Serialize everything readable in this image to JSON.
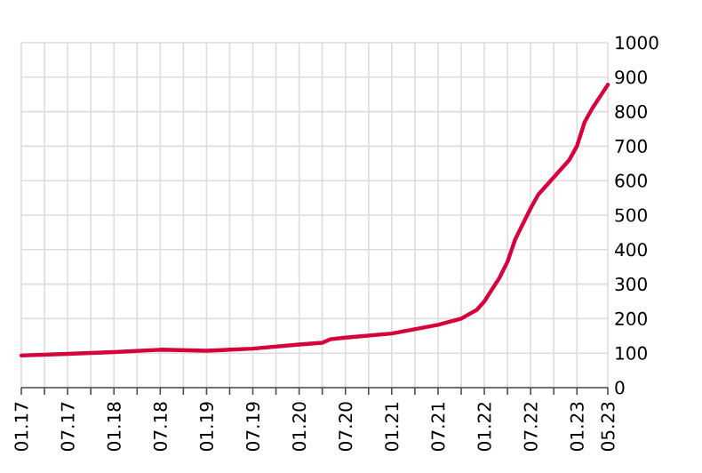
{
  "chart_data": {
    "type": "line",
    "x": [
      "2017-01",
      "2017-07",
      "2018-01",
      "2018-07",
      "2019-01",
      "2019-07",
      "2020-01",
      "2020-04",
      "2020-05",
      "2020-07",
      "2021-01",
      "2021-07",
      "2021-10",
      "2021-12",
      "2022-01",
      "2022-03",
      "2022-04",
      "2022-05",
      "2022-07",
      "2022-08",
      "2022-10",
      "2022-12",
      "2023-01",
      "2023-02",
      "2023-03",
      "2023-05"
    ],
    "series": [
      {
        "color": "#d5003c",
        "values": [
          93,
          98,
          103,
          110,
          107,
          113,
          125,
          130,
          140,
          145,
          157,
          182,
          200,
          225,
          250,
          320,
          365,
          430,
          520,
          560,
          610,
          660,
          700,
          770,
          810,
          878
        ]
      }
    ],
    "xlim": [
      "2017-01",
      "2023-05"
    ],
    "xticks": [
      {
        "value": "2017-01",
        "label": "01.17"
      },
      {
        "value": "2017-04",
        "label": null
      },
      {
        "value": "2017-07",
        "label": "07.17"
      },
      {
        "value": "2017-10",
        "label": null
      },
      {
        "value": "2018-01",
        "label": "01.18"
      },
      {
        "value": "2018-04",
        "label": null
      },
      {
        "value": "2018-07",
        "label": "07.18"
      },
      {
        "value": "2018-10",
        "label": null
      },
      {
        "value": "2019-01",
        "label": "01.19"
      },
      {
        "value": "2019-04",
        "label": null
      },
      {
        "value": "2019-07",
        "label": "07.19"
      },
      {
        "value": "2019-10",
        "label": null
      },
      {
        "value": "2020-01",
        "label": "01.20"
      },
      {
        "value": "2020-04",
        "label": null
      },
      {
        "value": "2020-07",
        "label": "07.20"
      },
      {
        "value": "2020-10",
        "label": null
      },
      {
        "value": "2021-01",
        "label": "01.21"
      },
      {
        "value": "2021-04",
        "label": null
      },
      {
        "value": "2021-07",
        "label": "07.21"
      },
      {
        "value": "2021-10",
        "label": null
      },
      {
        "value": "2022-01",
        "label": "01.22"
      },
      {
        "value": "2022-04",
        "label": null
      },
      {
        "value": "2022-07",
        "label": "07.22"
      },
      {
        "value": "2022-10",
        "label": null
      },
      {
        "value": "2023-01",
        "label": "01.23"
      },
      {
        "value": "2023-05",
        "label": "05.23"
      }
    ],
    "ylim": [
      0,
      1000
    ],
    "yticks": [
      0,
      100,
      200,
      300,
      400,
      500,
      600,
      700,
      800,
      900,
      1000
    ],
    "grid": true,
    "line_style": "solid",
    "marker": "none"
  }
}
